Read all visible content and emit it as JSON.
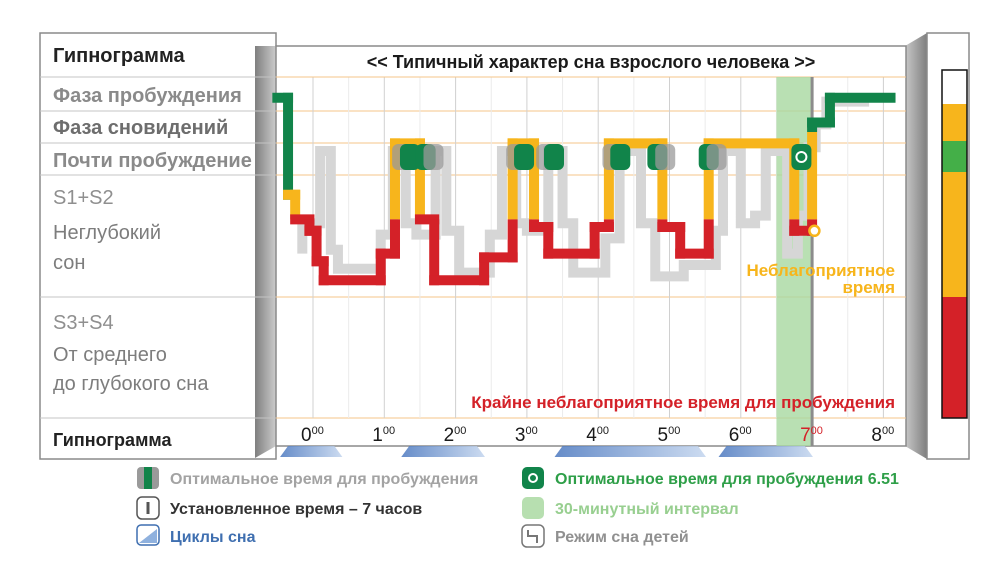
{
  "chart_data": {
    "type": "line",
    "title": "<< Типичный характер сна взрослого человека >>",
    "left_header": "Гипнограмма",
    "left_footer": "Гипнограмма",
    "stages": [
      {
        "key": "wake",
        "lines": [
          "Фаза пробуждения"
        ]
      },
      {
        "key": "rem",
        "lines": [
          "Фаза сновидений"
        ]
      },
      {
        "key": "near",
        "lines": [
          "Почти пробуждение"
        ]
      },
      {
        "key": "light",
        "lines": [
          "S1+S2",
          "Неглубокий",
          "сон"
        ]
      },
      {
        "key": "deep",
        "lines": [
          "S3+S4",
          "От среднего",
          "до глубокого сна"
        ]
      }
    ],
    "x_ticks": [
      {
        "hour": "0",
        "min": "00"
      },
      {
        "hour": "1",
        "min": "00"
      },
      {
        "hour": "2",
        "min": "00"
      },
      {
        "hour": "3",
        "min": "00"
      },
      {
        "hour": "4",
        "min": "00"
      },
      {
        "hour": "5",
        "min": "00"
      },
      {
        "hour": "6",
        "min": "00"
      },
      {
        "hour": "7",
        "min": "00"
      },
      {
        "hour": "8",
        "min": "00"
      }
    ],
    "xlim": [
      -0.5,
      8.2
    ],
    "depth_scale": "0 = пробуждение, 5 = глубокий сон",
    "series": [
      {
        "name": "Режим сна детей",
        "color": "#d6d6d6",
        "points": [
          [
            -0.15,
            4.2
          ],
          [
            -0.15,
            3.4
          ],
          [
            0.1,
            3.4
          ],
          [
            0.1,
            1.5
          ],
          [
            0.25,
            1.5
          ],
          [
            0.25,
            4.1
          ],
          [
            0.35,
            4.1
          ],
          [
            0.35,
            4.6
          ],
          [
            0.95,
            4.6
          ],
          [
            0.95,
            3.7
          ],
          [
            1.12,
            3.7
          ],
          [
            1.12,
            1.5
          ],
          [
            1.3,
            1.5
          ],
          [
            1.3,
            3.4
          ],
          [
            1.45,
            3.4
          ],
          [
            1.45,
            3.7
          ],
          [
            1.72,
            3.7
          ],
          [
            1.72,
            1.5
          ],
          [
            1.87,
            1.5
          ],
          [
            1.87,
            3.6
          ],
          [
            2.05,
            3.6
          ],
          [
            2.05,
            4.7
          ],
          [
            2.48,
            4.7
          ],
          [
            2.48,
            3.7
          ],
          [
            2.65,
            3.7
          ],
          [
            2.65,
            1.5
          ],
          [
            2.85,
            1.5
          ],
          [
            2.85,
            3.4
          ],
          [
            3.0,
            3.4
          ],
          [
            3.0,
            3.6
          ],
          [
            3.3,
            3.6
          ],
          [
            3.3,
            1.5
          ],
          [
            3.5,
            1.5
          ],
          [
            3.5,
            3.4
          ],
          [
            3.65,
            3.4
          ],
          [
            3.65,
            4.7
          ],
          [
            4.1,
            4.7
          ],
          [
            4.1,
            3.8
          ],
          [
            4.3,
            3.8
          ],
          [
            4.3,
            1.5
          ],
          [
            4.6,
            1.5
          ],
          [
            4.6,
            3.4
          ],
          [
            4.8,
            3.4
          ],
          [
            4.8,
            4.8
          ],
          [
            5.2,
            4.8
          ],
          [
            5.2,
            4.5
          ],
          [
            5.65,
            4.5
          ],
          [
            5.65,
            3.6
          ],
          [
            5.75,
            3.6
          ],
          [
            5.75,
            1.5
          ],
          [
            6.0,
            1.5
          ],
          [
            6.0,
            3.4
          ],
          [
            6.2,
            3.4
          ],
          [
            6.2,
            3.2
          ],
          [
            6.35,
            3.2
          ],
          [
            6.35,
            1.5
          ],
          [
            6.65,
            1.5
          ],
          [
            6.65,
            4.2
          ],
          [
            6.8,
            4.2
          ],
          [
            6.8,
            3.2
          ],
          [
            6.95,
            3.2
          ],
          [
            6.95,
            1.4
          ],
          [
            7.05,
            1.4
          ],
          [
            7.05,
            0.8
          ],
          [
            7.2,
            0.8
          ],
          [
            7.2,
            0.2
          ],
          [
            7.8,
            0.2
          ]
        ]
      },
      {
        "name": "Гипнограмма",
        "color_light": "#f7b51c",
        "color_deep": "#d42128",
        "color_near": "#11844a",
        "points": [
          [
            -0.5,
            0.1
          ],
          [
            -0.35,
            0.1
          ],
          [
            -0.35,
            2.65
          ],
          [
            -0.25,
            2.65
          ],
          [
            -0.25,
            3.3
          ],
          [
            -0.05,
            3.3
          ],
          [
            -0.05,
            3.6
          ],
          [
            0.05,
            3.6
          ],
          [
            0.05,
            4.4
          ],
          [
            0.15,
            4.4
          ],
          [
            0.15,
            4.9
          ],
          [
            0.95,
            4.9
          ],
          [
            0.95,
            4.2
          ],
          [
            1.15,
            4.2
          ],
          [
            1.15,
            1.3
          ],
          [
            1.5,
            1.3
          ],
          [
            1.5,
            3.3
          ],
          [
            1.7,
            3.3
          ],
          [
            1.7,
            4.9
          ],
          [
            2.4,
            4.9
          ],
          [
            2.4,
            4.3
          ],
          [
            2.8,
            4.3
          ],
          [
            2.8,
            1.3
          ],
          [
            3.1,
            1.3
          ],
          [
            3.1,
            3.5
          ],
          [
            3.3,
            3.5
          ],
          [
            3.3,
            4.2
          ],
          [
            3.95,
            4.2
          ],
          [
            3.95,
            3.5
          ],
          [
            4.15,
            3.5
          ],
          [
            4.15,
            1.3
          ],
          [
            4.9,
            1.3
          ],
          [
            4.9,
            3.5
          ],
          [
            5.15,
            3.5
          ],
          [
            5.15,
            4.2
          ],
          [
            5.55,
            4.2
          ],
          [
            5.55,
            1.3
          ],
          [
            6.75,
            1.3
          ],
          [
            6.75,
            3.6
          ],
          [
            7.0,
            3.6
          ],
          [
            7.0,
            0.75
          ],
          [
            7.25,
            0.75
          ],
          [
            7.25,
            0.1
          ],
          [
            8.1,
            0.1
          ]
        ]
      }
    ],
    "near_wake_markers": [
      {
        "x": 1.25,
        "type": "grey"
      },
      {
        "x": 1.36,
        "type": "green"
      },
      {
        "x": 1.58,
        "type": "green"
      },
      {
        "x": 1.69,
        "type": "grey"
      },
      {
        "x": 2.85,
        "type": "grey"
      },
      {
        "x": 2.96,
        "type": "green"
      },
      {
        "x": 3.27,
        "type": "grey"
      },
      {
        "x": 3.38,
        "type": "green"
      },
      {
        "x": 4.2,
        "type": "grey"
      },
      {
        "x": 4.31,
        "type": "green"
      },
      {
        "x": 4.83,
        "type": "green"
      },
      {
        "x": 4.94,
        "type": "grey"
      },
      {
        "x": 5.55,
        "type": "green"
      },
      {
        "x": 5.66,
        "type": "grey"
      },
      {
        "x": 6.85,
        "type": "optimal"
      }
    ],
    "optimal_interval": [
      6.5,
      7.0
    ],
    "alarm_time": 7.0,
    "cycle_marks": [
      [
        -0.35,
        0.3
      ],
      [
        1.35,
        2.3
      ],
      [
        3.5,
        5.4
      ],
      [
        5.8,
        6.9
      ]
    ],
    "unfavorable_point": 6.85,
    "annotations": {
      "unfavorable_1": "Неблагоприятное",
      "unfavorable_2": "время",
      "extreme": "Крайне неблагоприятное время для пробуждения"
    },
    "right_bar_colors": [
      "#ffffff",
      "#f7b51c",
      "#44af48",
      "#f7b51c",
      "#d42128"
    ],
    "legend": [
      {
        "icon": "optimal-window",
        "text": "Оптимальное время для пробуждения",
        "color": "#a3a3a3"
      },
      {
        "icon": "optimal-point",
        "text": "Оптимальное время для пробуждения 6.51",
        "color": "#2e9f48"
      },
      {
        "icon": "alarm",
        "text": "Установленное время – 7 часов",
        "color": "#333333"
      },
      {
        "icon": "interval",
        "text": "30-минутный интервал",
        "color": "#98cf90"
      },
      {
        "icon": "cycles",
        "text": "Циклы сна",
        "color": "#3f6fb0"
      },
      {
        "icon": "child-sleep",
        "text": "Режим сна детей",
        "color": "#909090"
      }
    ]
  }
}
